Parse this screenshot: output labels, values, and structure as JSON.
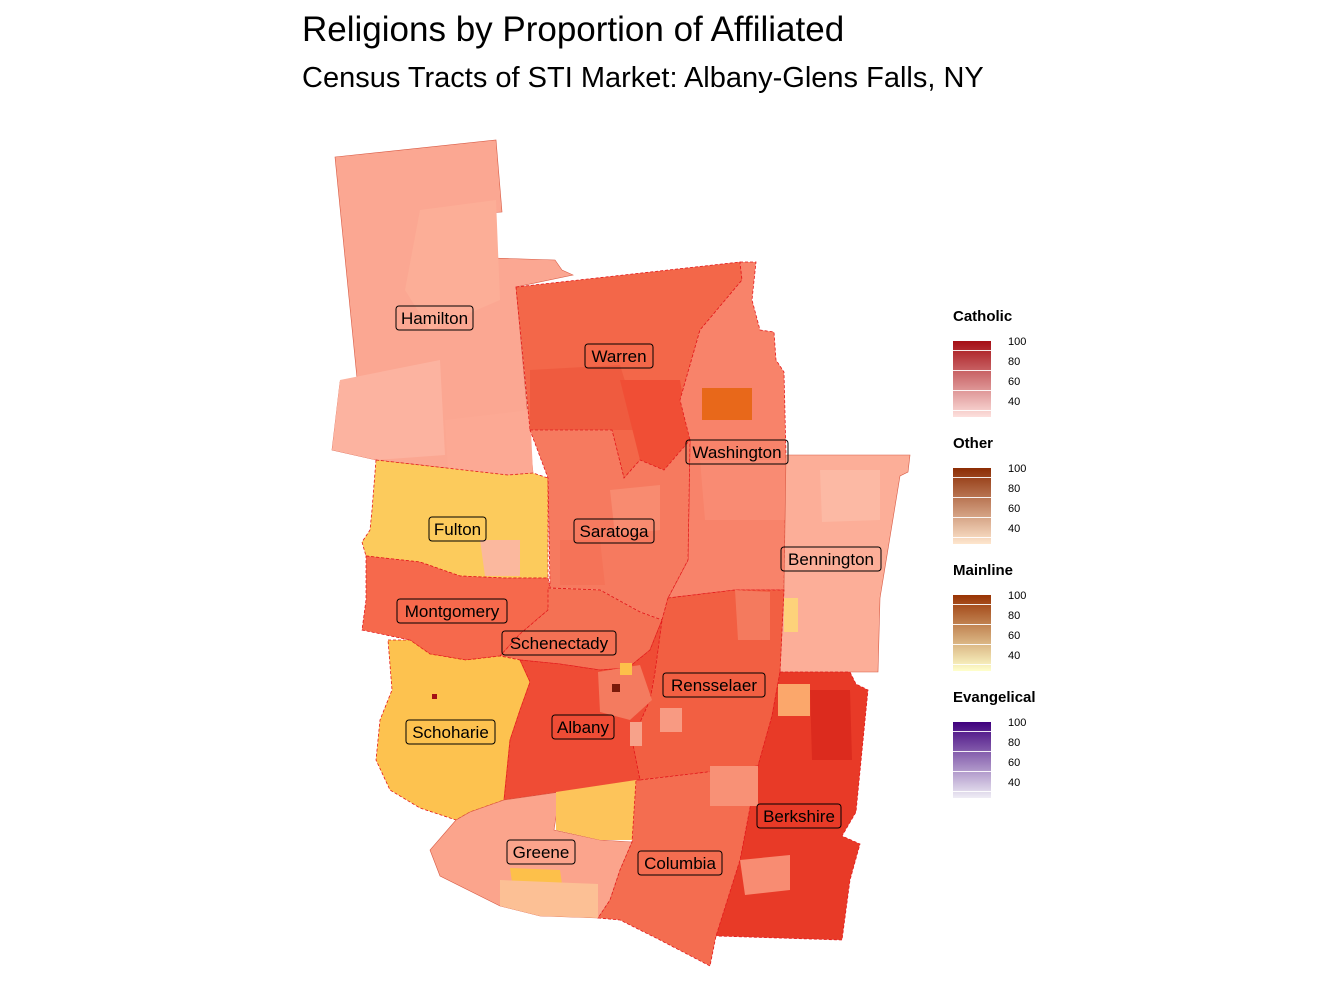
{
  "title": "Religions by Proportion of Affiliated",
  "subtitle": "Census Tracts of STI Market: Albany-Glens Falls, NY",
  "counties": [
    {
      "name": "Hamilton",
      "category": "Catholic",
      "value": 45
    },
    {
      "name": "Warren",
      "category": "Catholic",
      "value": 62
    },
    {
      "name": "Washington",
      "category": "Catholic",
      "value": 56
    },
    {
      "name": "Fulton",
      "category": "Mainline",
      "value": 52
    },
    {
      "name": "Saratoga",
      "category": "Catholic",
      "value": 58
    },
    {
      "name": "Bennington",
      "category": "Catholic",
      "value": 48
    },
    {
      "name": "Montgomery",
      "category": "Catholic",
      "value": 60
    },
    {
      "name": "Schenectady",
      "category": "Catholic",
      "value": 60
    },
    {
      "name": "Rensselaer",
      "category": "Catholic",
      "value": 64
    },
    {
      "name": "Schoharie",
      "category": "Mainline",
      "value": 55
    },
    {
      "name": "Albany",
      "category": "Catholic",
      "value": 68
    },
    {
      "name": "Berkshire",
      "category": "Catholic",
      "value": 75
    },
    {
      "name": "Greene",
      "category": "Catholic",
      "value": 50
    },
    {
      "name": "Columbia",
      "category": "Catholic",
      "value": 62
    }
  ],
  "legend": [
    {
      "title": "Catholic",
      "color_low": "#fde0dd",
      "color_high": "#a50f15",
      "ticks": [
        "100",
        "80",
        "60",
        "40"
      ]
    },
    {
      "title": "Other",
      "color_low": "#fee6ce",
      "color_high": "#8c2d04",
      "ticks": [
        "100",
        "80",
        "60",
        "40"
      ]
    },
    {
      "title": "Mainline",
      "color_low": "#ffffcc",
      "color_high": "#993404",
      "ticks": [
        "100",
        "80",
        "60",
        "40"
      ]
    },
    {
      "title": "Evangelical",
      "color_low": "#efedf5",
      "color_high": "#3f007d",
      "ticks": [
        "100",
        "80",
        "60",
        "40"
      ]
    }
  ]
}
